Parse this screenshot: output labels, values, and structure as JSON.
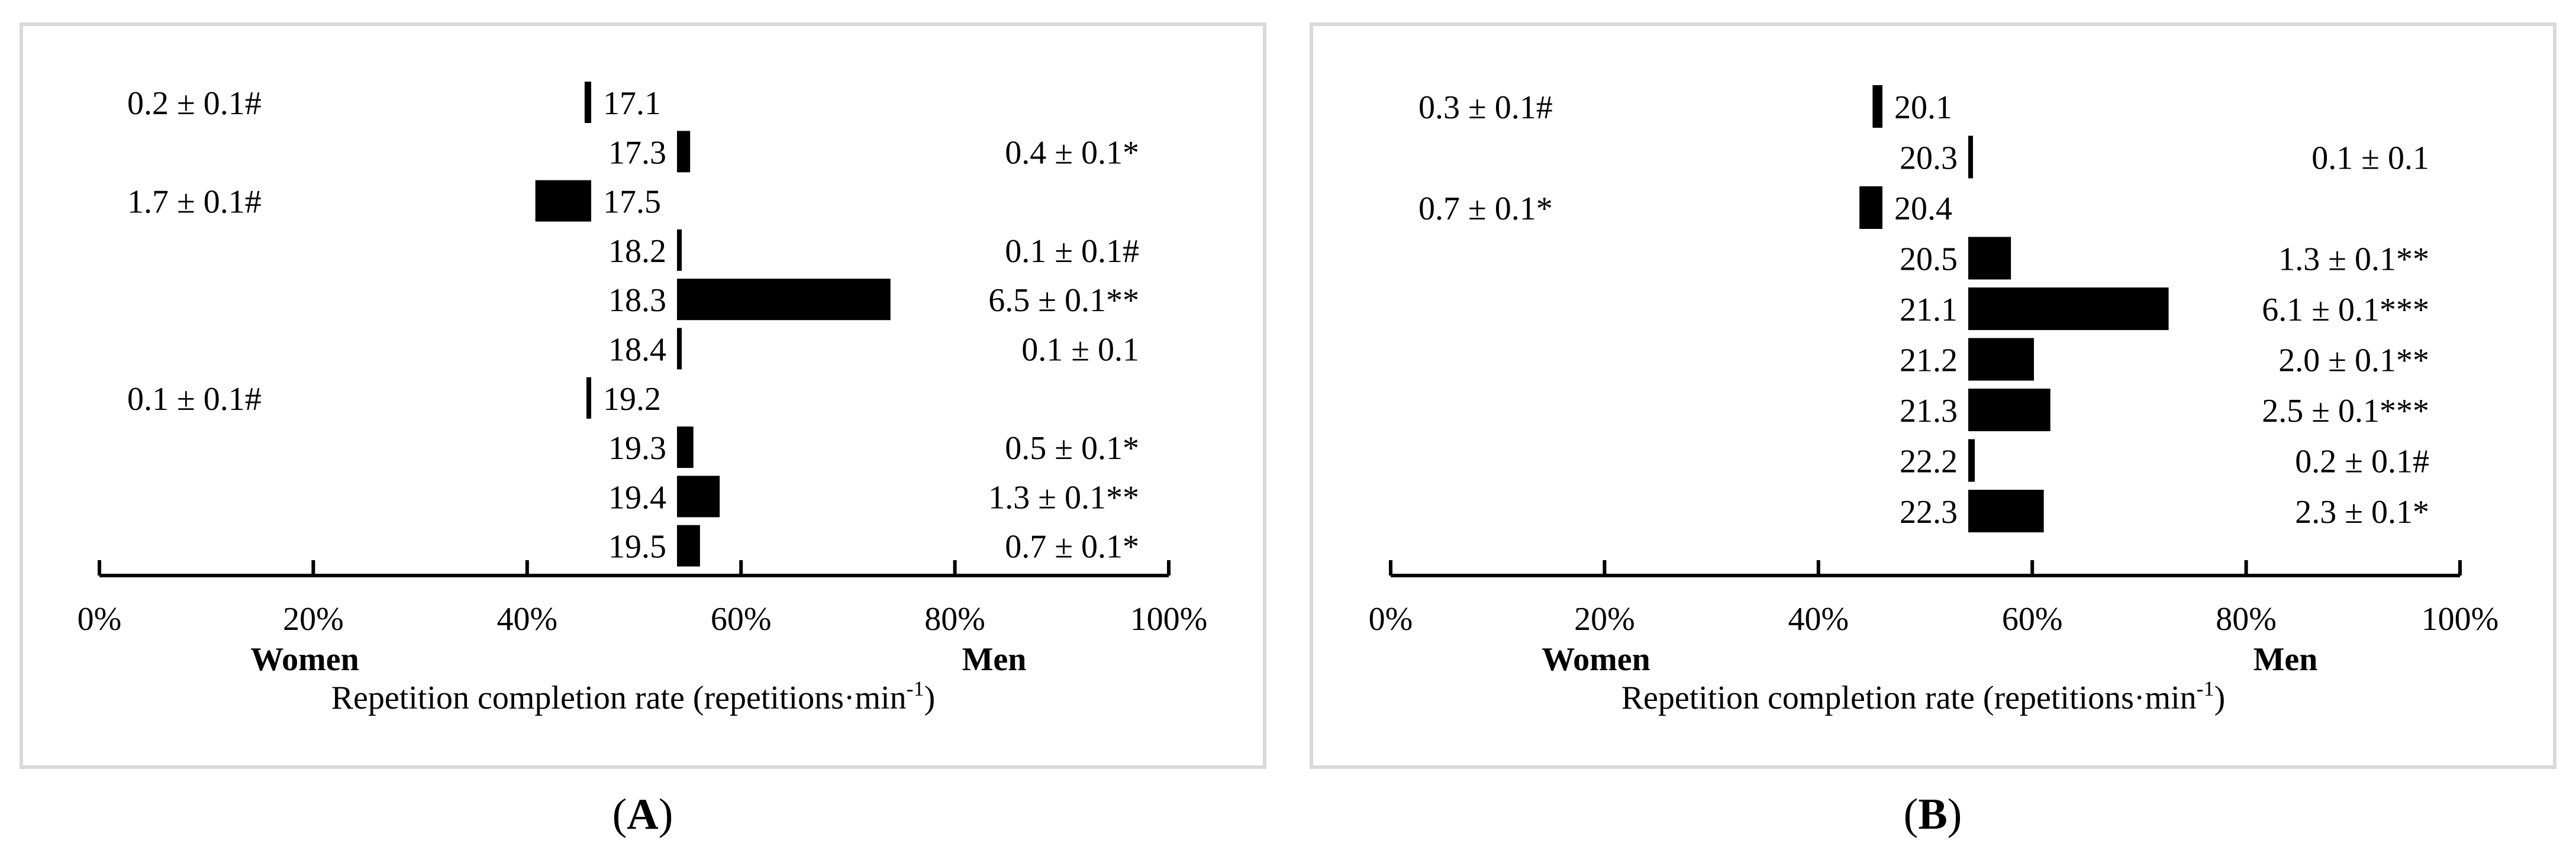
{
  "panels": [
    {
      "label": "A",
      "label_paren_open": "(",
      "label_paren_close": ")"
    },
    {
      "label": "B",
      "label_paren_open": "(",
      "label_paren_close": ")"
    }
  ],
  "chart_data": [
    {
      "type": "bar",
      "orientation": "horizontal-diverging",
      "xlabel_main": "Repetition completion rate (repetitions·min",
      "xlabel_sup": "-1",
      "xlabel_close": ")",
      "women_label": "Women",
      "men_label": "Men",
      "xticks": [
        "0%",
        "20%",
        "40%",
        "60%",
        "80%",
        "100%"
      ],
      "xlim": [
        0,
        100
      ],
      "categories": [
        "17.1",
        "17.3",
        "17.5",
        "18.2",
        "18.3",
        "18.4",
        "19.2",
        "19.3",
        "19.4",
        "19.5"
      ],
      "sides": [
        "women",
        "men",
        "women",
        "men",
        "men",
        "men",
        "women",
        "men",
        "men",
        "men"
      ],
      "values": [
        0.2,
        0.4,
        1.7,
        0.1,
        6.5,
        0.1,
        0.1,
        0.5,
        1.3,
        0.7
      ],
      "value_labels": [
        "0.2 ± 0.1#",
        "0.4 ± 0.1*",
        "1.7 ± 0.1#",
        "0.1 ± 0.1#",
        "6.5 ± 0.1**",
        "0.1 ± 0.1",
        "0.1 ± 0.1#",
        "0.5 ± 0.1*",
        "1.3 ± 0.1**",
        "0.7 ± 0.1*"
      ]
    },
    {
      "type": "bar",
      "orientation": "horizontal-diverging",
      "xlabel_main": "Repetition completion rate (repetitions·min",
      "xlabel_sup": "-1",
      "xlabel_close": ")",
      "women_label": "Women",
      "men_label": "Men",
      "xticks": [
        "0%",
        "20%",
        "40%",
        "60%",
        "80%",
        "100%"
      ],
      "xlim": [
        0,
        100
      ],
      "categories": [
        "20.1",
        "20.3",
        "20.4",
        "20.5",
        "21.1",
        "21.2",
        "21.3",
        "22.2",
        "22.3"
      ],
      "sides": [
        "women",
        "men",
        "women",
        "men",
        "men",
        "men",
        "men",
        "men",
        "men"
      ],
      "values": [
        0.3,
        0.1,
        0.7,
        1.3,
        6.1,
        2.0,
        2.5,
        0.2,
        2.3
      ],
      "value_labels": [
        "0.3 ± 0.1#",
        "0.1 ± 0.1",
        "0.7 ± 0.1*",
        "1.3 ± 0.1**",
        "6.1 ± 0.1***",
        "2.0 ± 0.1**",
        "2.5 ± 0.1***",
        "0.2 ± 0.1#",
        "2.3 ± 0.1*"
      ]
    }
  ]
}
